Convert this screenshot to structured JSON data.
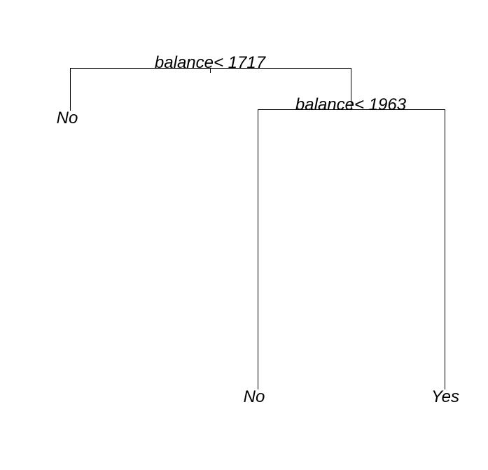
{
  "tree": {
    "root": {
      "split": {
        "variable": "balance",
        "operator": "<",
        "threshold": "1717",
        "label": "balance< 1717"
      },
      "left": {
        "leaf": "No"
      },
      "right": {
        "split": {
          "variable": "balance",
          "operator": "<",
          "threshold": "1963",
          "label": "balance< 1963"
        },
        "left": {
          "leaf": "No"
        },
        "right": {
          "leaf": "Yes"
        }
      }
    }
  },
  "colors": {
    "background": "#ffffff",
    "line": "#000000",
    "text": "#000000"
  }
}
